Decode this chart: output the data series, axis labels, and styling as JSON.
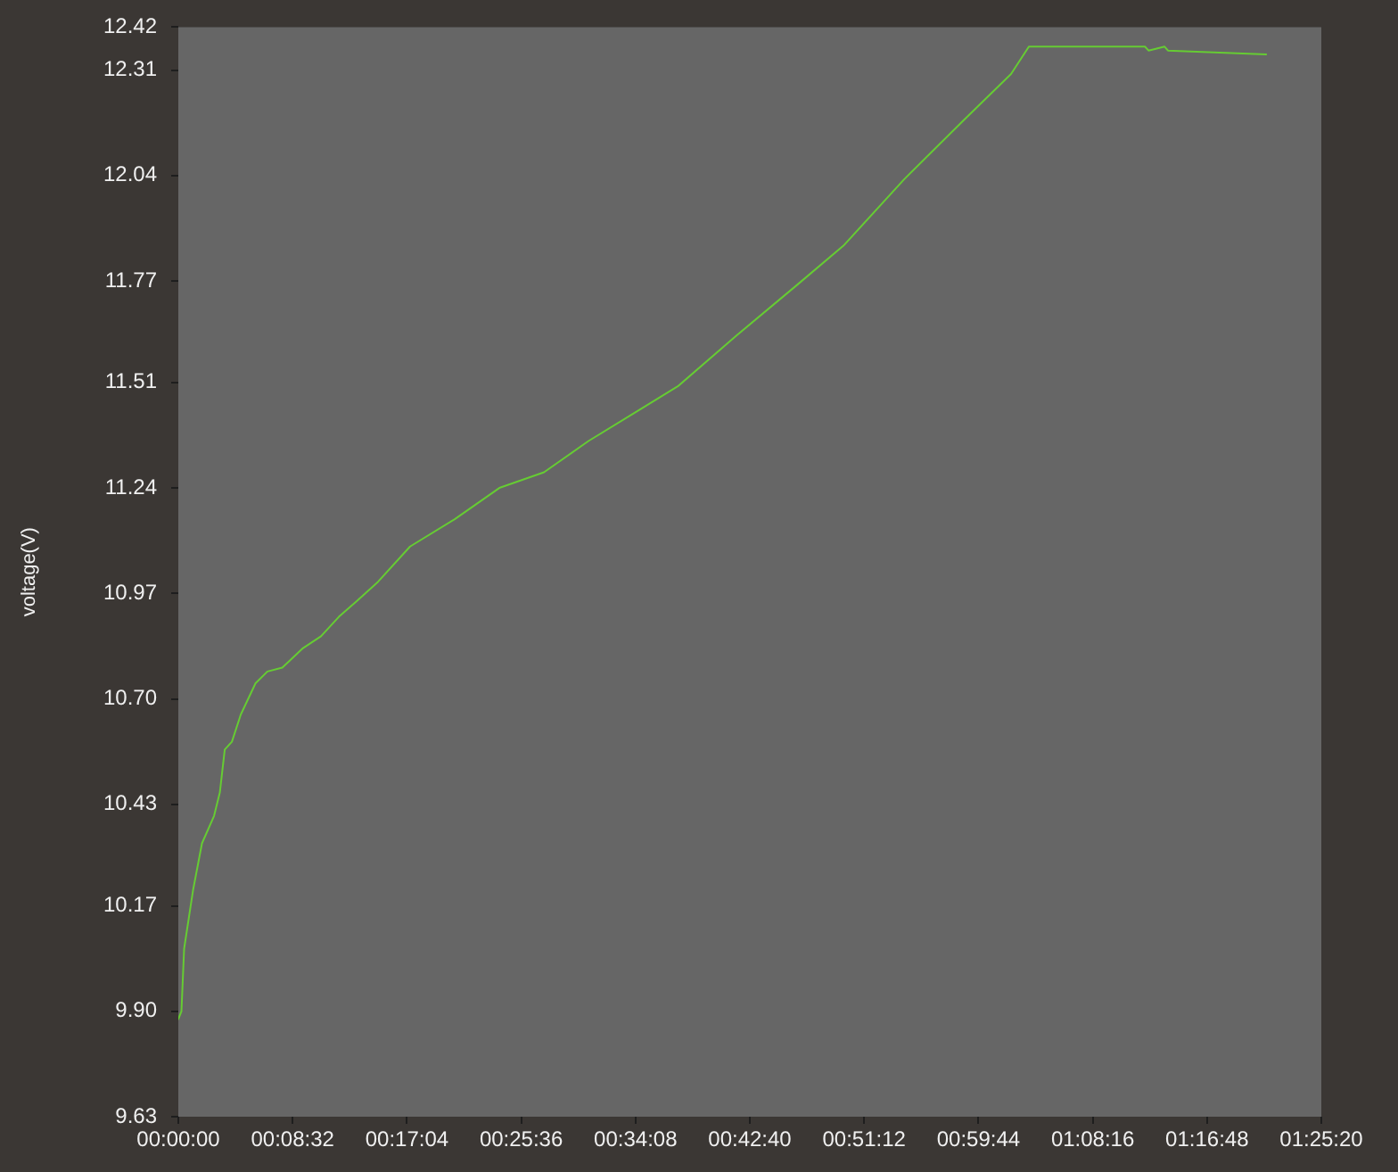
{
  "chart_data": {
    "type": "line",
    "ylabel": "voltage(V)",
    "x": [
      0,
      14,
      26,
      66,
      106,
      160,
      186,
      208,
      240,
      280,
      346,
      399,
      466,
      559,
      639,
      719,
      799,
      895,
      1038,
      1238,
      1438,
      1638,
      1837,
      2037,
      2237,
      2500,
      2772,
      2979,
      3251,
      3515,
      3730,
      3810,
      4330,
      4346,
      4418,
      4433,
      4873
    ],
    "series": [
      {
        "color": "#66cc33",
        "values": [
          9.88,
          9.9,
          10.06,
          10.21,
          10.33,
          10.4,
          10.46,
          10.57,
          10.59,
          10.66,
          10.74,
          10.77,
          10.78,
          10.83,
          10.86,
          10.91,
          10.95,
          11.0,
          11.09,
          11.16,
          11.24,
          11.28,
          11.36,
          11.43,
          11.5,
          11.63,
          11.76,
          11.86,
          12.03,
          12.18,
          12.3,
          12.37,
          12.37,
          12.36,
          12.37,
          12.36,
          12.35
        ]
      }
    ],
    "xlim": [
      0,
      5120
    ],
    "xticks": [
      {
        "value": 0,
        "label": "00:00:00"
      },
      {
        "value": 512,
        "label": "00:08:32"
      },
      {
        "value": 1024,
        "label": "00:17:04"
      },
      {
        "value": 1536,
        "label": "00:25:36"
      },
      {
        "value": 2048,
        "label": "00:34:08"
      },
      {
        "value": 2560,
        "label": "00:42:40"
      },
      {
        "value": 3072,
        "label": "00:51:12"
      },
      {
        "value": 3584,
        "label": "00:59:44"
      },
      {
        "value": 4096,
        "label": "01:08:16"
      },
      {
        "value": 4608,
        "label": "01:16:48"
      },
      {
        "value": 5120,
        "label": "01:25:20"
      }
    ],
    "ylim": [
      9.63,
      12.42
    ],
    "yticks": [
      9.63,
      {
        "value": 9.9,
        "label": "9.90"
      },
      10.17,
      10.43,
      {
        "value": 10.7,
        "label": "10.70"
      },
      10.97,
      11.24,
      11.51,
      11.77,
      12.04,
      12.31,
      12.42
    ],
    "grid": false,
    "legend": false,
    "marker": "none",
    "line_style": "solid"
  }
}
